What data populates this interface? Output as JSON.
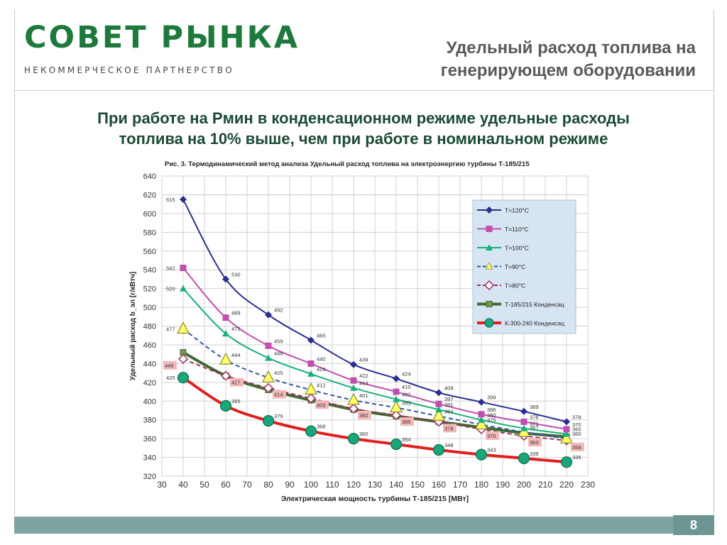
{
  "header": {
    "logo_title": "СОВЕТ РЫНКА",
    "logo_subtitle": "НЕКОММЕРЧЕСКОЕ ПАРТНЕРСТВО",
    "title_line1": "Удельный расход топлива на",
    "title_line2": "генерирующем оборудовании"
  },
  "subtitle": {
    "line1": "При работе на Рмин в конденсационном режиме удельные расходы",
    "line2": "топлива на 10% выше, чем при работе в номинальном режиме"
  },
  "footer": {
    "page_number": "8"
  },
  "colors": {
    "brand_green": "#1e7a3c",
    "footer_teal": "#7ea3a0"
  },
  "chart_data": {
    "type": "line",
    "title": "Рис. 3. Термодинамический метод анализа Удельный расход топлива на электроэнергию турбины Т-185/215",
    "xlabel": "Электрическая мощность турбины Т-185/215 [МВт]",
    "ylabel": "Удельный расход b_эл [г/кВтч]",
    "xlim": [
      30,
      230
    ],
    "ylim": [
      320,
      640
    ],
    "xticks": [
      30,
      40,
      50,
      60,
      70,
      80,
      90,
      100,
      110,
      120,
      130,
      140,
      150,
      160,
      170,
      180,
      190,
      200,
      210,
      220,
      230
    ],
    "yticks": [
      320,
      340,
      360,
      380,
      400,
      420,
      440,
      460,
      480,
      500,
      520,
      540,
      560,
      580,
      600,
      620,
      640
    ],
    "grid": true,
    "legend_position": "right",
    "x": [
      40,
      60,
      80,
      100,
      120,
      140,
      160,
      180,
      200,
      220
    ],
    "series": [
      {
        "name": "T=120°C",
        "color": "#2b2f8f",
        "dash": "solid",
        "width": 2,
        "marker": "diamond",
        "values": [
          615,
          530,
          492,
          465,
          439,
          424,
          409,
          399,
          389,
          378
        ],
        "labels": [
          "615",
          "530",
          "492",
          "465",
          "439",
          "424",
          "409",
          "399",
          "389",
          "378"
        ]
      },
      {
        "name": "T=110°C",
        "color": "#c04fb0",
        "dash": "solid",
        "width": 2,
        "marker": "square",
        "values": [
          542,
          489,
          459,
          440,
          422,
          410,
          397,
          386,
          378,
          370
        ],
        "labels": [
          "542",
          "489",
          "459",
          "440",
          "422",
          "410",
          "397",
          "386",
          "378",
          "370"
        ]
      },
      {
        "name": "T=100°C",
        "color": "#16b07a",
        "dash": "solid",
        "width": 2,
        "marker": "triangle",
        "values": [
          520,
          472,
          446,
          429,
          414,
          402,
          391,
          380,
          371,
          365
        ],
        "labels": [
          "520",
          "472",
          "446",
          "429",
          "414",
          "402",
          "391",
          "380",
          "371",
          "365"
        ]
      },
      {
        "name": "T=90°C",
        "color": "#2f56a8",
        "dash": "dashed",
        "width": 2,
        "marker": "triangle-open",
        "values": [
          477,
          444,
          425,
          412,
          401,
          393,
          384,
          375,
          367,
          360
        ],
        "labels": [
          "477",
          "444",
          "425",
          "412",
          "401",
          "393",
          "384",
          "375",
          "367",
          "360"
        ]
      },
      {
        "name": "T=80°C",
        "color": "#a0305e",
        "dash": "dashed",
        "width": 2,
        "marker": "diamond-open",
        "values": [
          445,
          427,
          414,
          403,
          392,
          385,
          378,
          370,
          363,
          358
        ],
        "labels": [
          "445",
          "427",
          "414",
          "403",
          "392",
          "385",
          "378",
          "370",
          "363",
          "358"
        ]
      },
      {
        "name": "Т-185/215 Конденсац",
        "color": "#3f6b2f",
        "dash": "solid",
        "width": 4,
        "marker": "square-small",
        "values": [
          452,
          427,
          412,
          401,
          391,
          384,
          378,
          372,
          366,
          362
        ],
        "labels": []
      },
      {
        "name": "К-300-240 Конденсац",
        "color": "#e02020",
        "dash": "solid",
        "width": 4,
        "marker": "circle",
        "values": [
          425,
          395,
          379,
          368,
          360,
          354,
          348,
          343,
          339,
          335
        ],
        "labels": [
          "425",
          "395",
          "379",
          "368",
          "360",
          "354",
          "348",
          "343",
          "339",
          "335"
        ]
      }
    ]
  }
}
